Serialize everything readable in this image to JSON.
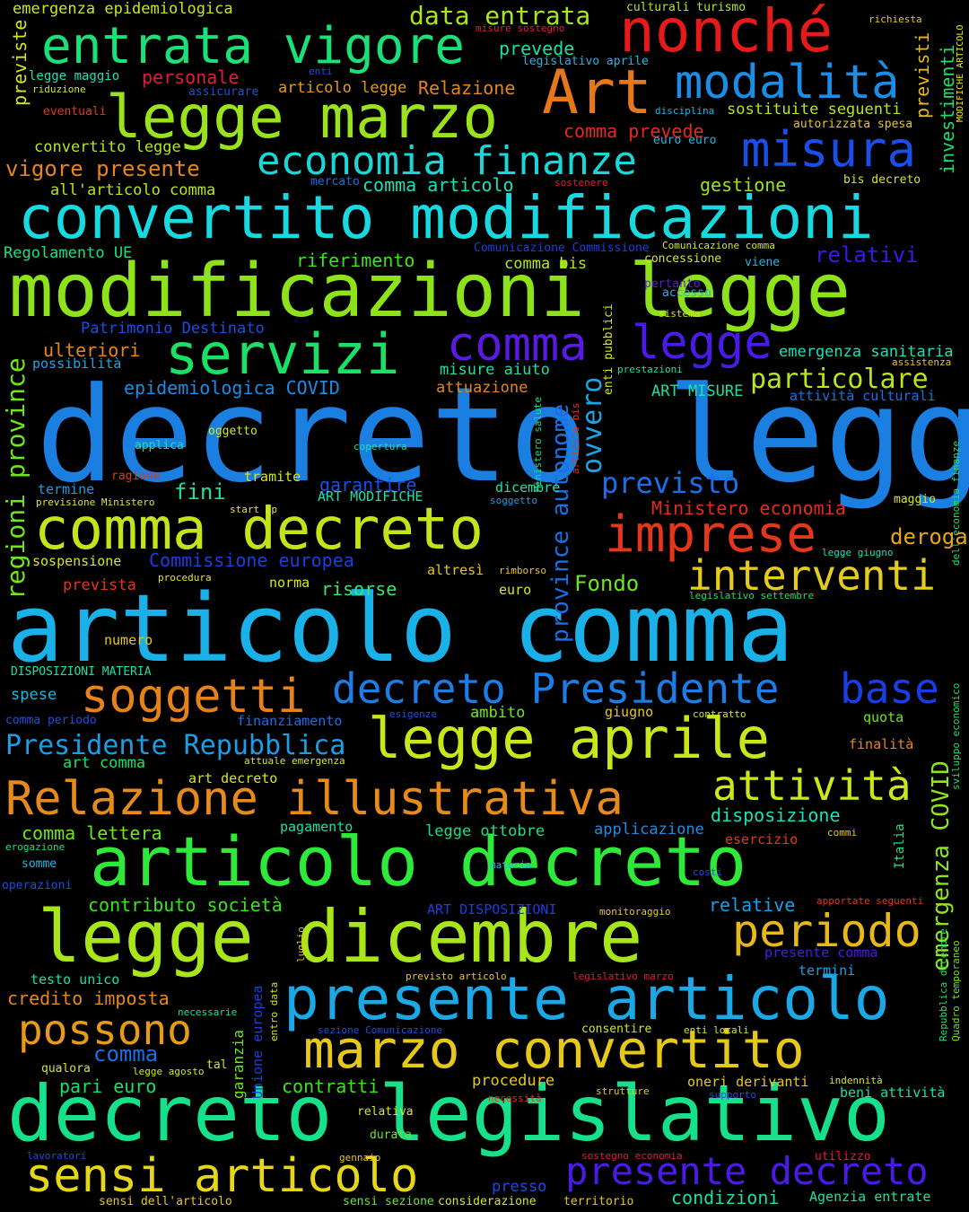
{
  "words": {
    "w01": {
      "text": "decreto legge",
      "color": "#1a7fe0"
    },
    "w02": {
      "text": "articolo comma",
      "color": "#1ab0e8"
    },
    "w03": {
      "text": "modificazioni legge",
      "color": "#8ee21a"
    },
    "w04": {
      "text": "convertito modificazioni",
      "color": "#18d9e0"
    },
    "w05": {
      "text": "decreto legislativo",
      "color": "#16e08a"
    },
    "w06": {
      "text": "articolo decreto",
      "color": "#2ee83a"
    },
    "w07": {
      "text": "legge dicembre",
      "color": "#a8e61a"
    },
    "w08": {
      "text": "legge marzo",
      "color": "#9ae21c"
    },
    "w09": {
      "text": "presente articolo",
      "color": "#1aa8e6"
    },
    "w10": {
      "text": "comma decreto",
      "color": "#c4e41a"
    },
    "w11": {
      "text": "nonché",
      "color": "#e61a1a"
    },
    "w12": {
      "text": "entrata vigore",
      "color": "#1ae07a"
    },
    "w13": {
      "text": "marzo convertito",
      "color": "#e6c81a"
    },
    "w14": {
      "text": "legge aprile",
      "color": "#c8e61a"
    },
    "w15": {
      "text": "Relazione illustrativa",
      "color": "#e68a1a"
    },
    "w16": {
      "text": "Art",
      "color": "#e6781a"
    },
    "w17": {
      "text": "modalità",
      "color": "#1a8ee6"
    },
    "w18": {
      "text": "sensi articolo",
      "color": "#e6d61a"
    },
    "w19": {
      "text": "servizi",
      "color": "#1ae066"
    },
    "w20": {
      "text": "soggetti",
      "color": "#e6821a"
    },
    "w21": {
      "text": "imprese",
      "color": "#e6361a"
    },
    "w22": {
      "text": "misura",
      "color": "#1a4ee6"
    },
    "w23": {
      "text": "economia finanze",
      "color": "#1ad6d6"
    },
    "w24": {
      "text": "comma",
      "color": "#5a1ae6"
    },
    "w25": {
      "text": "legge",
      "color": "#4a1ae6"
    },
    "w26": {
      "text": "decreto Presidente",
      "color": "#1a7ee6"
    },
    "w27": {
      "text": "base",
      "color": "#1a3ee6"
    },
    "w28": {
      "text": "interventi",
      "color": "#e6cc1a"
    },
    "w29": {
      "text": "presente decreto",
      "color": "#4a1ae6"
    },
    "w30": {
      "text": "periodo",
      "color": "#e6b81a"
    },
    "w31": {
      "text": "attività",
      "color": "#cce61a"
    },
    "w32": {
      "text": "possono",
      "color": "#e69a1a"
    },
    "w33": {
      "text": "Presidente Repubblica",
      "color": "#1a9ee6"
    },
    "w34": {
      "text": "previsto",
      "color": "#1a6ee6"
    },
    "w35": {
      "text": "particolare",
      "color": "#b8e61a"
    },
    "w36": {
      "text": "emergenza COVID",
      "color": "#8ee61a"
    },
    "w37": {
      "text": "province autonome",
      "color": "#1a6ee6"
    },
    "w38": {
      "text": "regioni province",
      "color": "#6ee61a"
    },
    "w39": {
      "text": "ovvero",
      "color": "#1aa6e6"
    },
    "w40": {
      "text": "relativi",
      "color": "#3a1ae6"
    },
    "w41": {
      "text": "data entrata",
      "color": "#a8e61a"
    },
    "w42": {
      "text": "prevede",
      "color": "#1ae0a6"
    },
    "w43": {
      "text": "personale",
      "color": "#e61a3a"
    },
    "w44": {
      "text": "Relazione",
      "color": "#e6841a"
    },
    "w45": {
      "text": "articolo legge",
      "color": "#e69a1a"
    },
    "w46": {
      "text": "vigore presente",
      "color": "#e6861a"
    },
    "w47": {
      "text": "comma prevede",
      "color": "#e62a1a"
    },
    "w48": {
      "text": "sostituite seguenti",
      "color": "#b8e61a"
    },
    "w49": {
      "text": "gestione",
      "color": "#9ae61a"
    },
    "w50": {
      "text": "comma articolo",
      "color": "#1ae0b8"
    },
    "w51": {
      "text": "all'articolo comma",
      "color": "#b8e61a"
    },
    "w52": {
      "text": "convertito legge",
      "color": "#b8e61a"
    },
    "w53": {
      "text": "riferimento",
      "color": "#3ae61a"
    },
    "w54": {
      "text": "comma bis",
      "color": "#b8e61a"
    },
    "w55": {
      "text": "Regolamento UE",
      "color": "#1ae080"
    },
    "w56": {
      "text": "epidemiologica COVID",
      "color": "#1a8ee6"
    },
    "w57": {
      "text": "ulteriori",
      "color": "#e6861a"
    },
    "w58": {
      "text": "fini",
      "color": "#1ae0a0"
    },
    "w59": {
      "text": "garantire",
      "color": "#1a4ee6"
    },
    "w60": {
      "text": "Ministero economia",
      "color": "#e62a1a"
    },
    "w61": {
      "text": "deroga",
      "color": "#e6a61a"
    },
    "w62": {
      "text": "Commissione europea",
      "color": "#1a3ee6"
    },
    "w63": {
      "text": "risorse",
      "color": "#3ae66a"
    },
    "w64": {
      "text": "Fondo",
      "color": "#6ee61a"
    },
    "w65": {
      "text": "disposizione",
      "color": "#1ae0b8"
    },
    "w66": {
      "text": "comma lettera",
      "color": "#6ee61a"
    },
    "w67": {
      "text": "contributo società",
      "color": "#3ae61a"
    },
    "w68": {
      "text": "relative",
      "color": "#1a9ee6"
    },
    "w69": {
      "text": "credito imposta",
      "color": "#e6861a"
    },
    "w70": {
      "text": "pari euro",
      "color": "#1ae066"
    },
    "w71": {
      "text": "contratti",
      "color": "#3ae61a"
    },
    "w72": {
      "text": "condizioni",
      "color": "#1ae0a6"
    },
    "w73": {
      "text": "emergenza epidemiologica",
      "color": "#cce61a"
    },
    "w74": {
      "text": "emergenza sanitaria",
      "color": "#1ae0b8"
    },
    "w75": {
      "text": "investimenti",
      "color": "#1ae06a"
    },
    "w76": {
      "text": "previsti",
      "color": "#e6b81a"
    },
    "w77": {
      "text": "previste",
      "color": "#d6e61a"
    },
    "w78": {
      "text": "Patrimonio Destinato",
      "color": "#1a4ee6"
    },
    "w79": {
      "text": "ART MISURE",
      "color": "#1ae0a6"
    },
    "w80": {
      "text": "attuazione",
      "color": "#e6861a"
    },
    "w81": {
      "text": "misure aiuto",
      "color": "#1ae0a6"
    },
    "w82": {
      "text": "possibilità",
      "color": "#1aa6e6"
    },
    "w83": {
      "text": "attività culturali",
      "color": "#1a6ee6"
    },
    "w84": {
      "text": "termine",
      "color": "#1a9ee6"
    },
    "w85": {
      "text": "tramite",
      "color": "#d6e61a"
    },
    "w86": {
      "text": "ART MODIFICHE",
      "color": "#1ae0a6"
    },
    "w87": {
      "text": "dicembre",
      "color": "#1ae0a6"
    },
    "w88": {
      "text": "sospensione",
      "color": "#d6e61a"
    },
    "w89": {
      "text": "altresì",
      "color": "#e6c81a"
    },
    "w90": {
      "text": "prevista",
      "color": "#e6361a"
    },
    "w91": {
      "text": "norma",
      "color": "#d6e61a"
    },
    "w92": {
      "text": "euro",
      "color": "#d6e61a"
    },
    "w93": {
      "text": "numero",
      "color": "#e6c81a"
    },
    "w94": {
      "text": "ambito",
      "color": "#6ee61a"
    },
    "w95": {
      "text": "spese",
      "color": "#1ab8e6"
    },
    "w96": {
      "text": "giugno",
      "color": "#e6c81a"
    },
    "w97": {
      "text": "quota",
      "color": "#6ee61a"
    },
    "w98": {
      "text": "finanziamento",
      "color": "#1a6ee6"
    },
    "w99": {
      "text": "finalità",
      "color": "#e6861a"
    },
    "w100": {
      "text": "art comma",
      "color": "#1ae066"
    },
    "w101": {
      "text": "art decreto",
      "color": "#d6e61a"
    },
    "w102": {
      "text": "pagamento",
      "color": "#1ae0a6"
    },
    "w103": {
      "text": "legge ottobre",
      "color": "#1ae080"
    },
    "w104": {
      "text": "applicazione",
      "color": "#1a8ee6"
    },
    "w105": {
      "text": "esercizio",
      "color": "#e6361a"
    },
    "w106": {
      "text": "Italia",
      "color": "#1ae080"
    },
    "w107": {
      "text": "testo unico",
      "color": "#1ae0a6"
    },
    "w108": {
      "text": "termini",
      "color": "#1a9ee6"
    },
    "w109": {
      "text": "presente comma",
      "color": "#4a1ae6"
    },
    "w110": {
      "text": "ART DISPOSIZIONI",
      "color": "#1a3ee6"
    },
    "w111": {
      "text": "garanzia",
      "color": "#6ee61a"
    },
    "w112": {
      "text": "Unione europea",
      "color": "#1a3ee6"
    },
    "w113": {
      "text": "procedure",
      "color": "#e6c81a"
    },
    "w114": {
      "text": "oneri derivanti",
      "color": "#e6c81a"
    },
    "w115": {
      "text": "beni attività",
      "color": "#1ae0a6"
    },
    "w116": {
      "text": "presso",
      "color": "#1a4ee6"
    },
    "w117": {
      "text": "Agenzia entrate",
      "color": "#1ae0a6"
    },
    "w118": {
      "text": "modificazioni",
      "color": "#1a1ae6"
    },
    "w119": {
      "text": "Quadro temporaneo",
      "color": "#6ee61a"
    },
    "w120": {
      "text": "sviluppo economico",
      "color": "#1ae066"
    },
    "w121": {
      "text": "dell'economia finanze",
      "color": "#1ae066"
    },
    "w122": {
      "text": "Repubblica dicembre",
      "color": "#1ae066"
    },
    "t01": {
      "text": "richiesta",
      "color": "#e6c81a"
    },
    "t02": {
      "text": "misure sostegno",
      "color": "#e61a3a"
    },
    "t03": {
      "text": "culturali turismo",
      "color": "#b8e61a"
    },
    "t04": {
      "text": "legislativo aprile",
      "color": "#1ab8e6"
    },
    "t05": {
      "text": "MODIFICHE ARTICOLO",
      "color": "#e6e61a"
    },
    "t06": {
      "text": "legge maggio",
      "color": "#1ae0b8"
    },
    "t07": {
      "text": "riduzione",
      "color": "#d6e61a"
    },
    "t08": {
      "text": "enti",
      "color": "#1a4ee6"
    },
    "t09": {
      "text": "assicurare",
      "color": "#1a4ee6"
    },
    "t10": {
      "text": "eventuali",
      "color": "#e6361a"
    },
    "t11": {
      "text": "disciplina",
      "color": "#1ab8e6"
    },
    "t12": {
      "text": "autorizzata spesa",
      "color": "#e6c81a"
    },
    "t13": {
      "text": "euro euro",
      "color": "#1ab8e6"
    },
    "t14": {
      "text": "mercato",
      "color": "#1a6ee6"
    },
    "t15": {
      "text": "sostenere",
      "color": "#e61a3a"
    },
    "t16": {
      "text": "bis decreto",
      "color": "#d6e61a"
    },
    "t17": {
      "text": "Comunicazione Commissione",
      "color": "#1a3ee6"
    },
    "t18": {
      "text": "Comunicazione comma",
      "color": "#d6e61a"
    },
    "t19": {
      "text": "concessione",
      "color": "#d6e61a"
    },
    "t20": {
      "text": "viene",
      "color": "#1ab8e6"
    },
    "t21": {
      "text": "pertanto",
      "color": "#5a1ae6"
    },
    "t22": {
      "text": "accesso",
      "color": "#1ab8e6"
    },
    "t23": {
      "text": "sistema",
      "color": "#d6e61a"
    },
    "t24": {
      "text": "enti pubblici",
      "color": "#d6e61a"
    },
    "t25": {
      "text": "prestazioni",
      "color": "#1ae0a6"
    },
    "t26": {
      "text": "assistenza",
      "color": "#e6c81a"
    },
    "t27": {
      "text": "applica",
      "color": "#1ae0a6"
    },
    "t28": {
      "text": "oggetto",
      "color": "#d6e61a"
    },
    "t29": {
      "text": "copertura",
      "color": "#1ae0a6"
    },
    "t30": {
      "text": "Ministero salute",
      "color": "#1ae080"
    },
    "t31": {
      "text": "articolo bis",
      "color": "#e6361a"
    },
    "t32": {
      "text": "ragione",
      "color": "#e6361a"
    },
    "t33": {
      "text": "previsione Ministero",
      "color": "#e6e61a"
    },
    "t34": {
      "text": "start up",
      "color": "#e6e61a"
    },
    "t35": {
      "text": "soggetto",
      "color": "#1a9ee6"
    },
    "t36": {
      "text": "maggio",
      "color": "#d6e61a"
    },
    "t37": {
      "text": "legge giugno",
      "color": "#1ae0b8"
    },
    "t38": {
      "text": "rimborso",
      "color": "#e6c81a"
    },
    "t39": {
      "text": "procedura",
      "color": "#e6e61a"
    },
    "t40": {
      "text": "legislativo settembre",
      "color": "#1ae066"
    },
    "t41": {
      "text": "DISPOSIZIONI MATERIA",
      "color": "#1ae0a6"
    },
    "t42": {
      "text": "comma periodo",
      "color": "#1a4ee6"
    },
    "t43": {
      "text": "esigenze",
      "color": "#1a4ee6"
    },
    "t44": {
      "text": "contratto",
      "color": "#d6e61a"
    },
    "t45": {
      "text": "attuale emergenza",
      "color": "#d6e61a"
    },
    "t46": {
      "text": "erogazione",
      "color": "#1ae080"
    },
    "t47": {
      "text": "commi",
      "color": "#e6c81a"
    },
    "t48": {
      "text": "somme",
      "color": "#1ab8e6"
    },
    "t49": {
      "text": "materia",
      "color": "#1ab8e6"
    },
    "t50": {
      "text": "costi",
      "color": "#1a4ee6"
    },
    "t51": {
      "text": "operazioni",
      "color": "#1a4ee6"
    },
    "t52": {
      "text": "monitoraggio",
      "color": "#e6c81a"
    },
    "t53": {
      "text": "apportate seguenti",
      "color": "#e6361a"
    },
    "t54": {
      "text": "luglio",
      "color": "#e6c81a"
    },
    "t55": {
      "text": "entro data",
      "color": "#d6e61a"
    },
    "t56": {
      "text": "previsto articolo",
      "color": "#e6c81a"
    },
    "t57": {
      "text": "legislativo marzo",
      "color": "#e61a3a"
    },
    "t58": {
      "text": "necessarie",
      "color": "#1ae0a6"
    },
    "t59": {
      "text": "sezione Comunicazione",
      "color": "#1a4ee6"
    },
    "t60": {
      "text": "consentire",
      "color": "#d6e61a"
    },
    "t61": {
      "text": "enti locali",
      "color": "#d6e61a"
    },
    "t62": {
      "text": "qualora",
      "color": "#d6e61a"
    },
    "t63": {
      "text": "legge agosto",
      "color": "#d6e61a"
    },
    "t64": {
      "text": "tal",
      "color": "#d6e61a"
    },
    "t65": {
      "text": "necessità",
      "color": "#e6361a"
    },
    "t66": {
      "text": "strutture",
      "color": "#e6c81a"
    },
    "t67": {
      "text": "supporto",
      "color": "#1a4ee6"
    },
    "t68": {
      "text": "indennità",
      "color": "#d6e61a"
    },
    "t69": {
      "text": "relativa",
      "color": "#d6e61a"
    },
    "t70": {
      "text": "durata",
      "color": "#6ee61a"
    },
    "t71": {
      "text": "lavoratori",
      "color": "#1a4ee6"
    },
    "t72": {
      "text": "gennaio",
      "color": "#e6c81a"
    },
    "t73": {
      "text": "sostegno economia",
      "color": "#e61a3a"
    },
    "t74": {
      "text": "utilizzo",
      "color": "#e61a3a"
    },
    "t75": {
      "text": "sensi dell'articolo",
      "color": "#e6c81a"
    },
    "t76": {
      "text": "sensi sezione",
      "color": "#6ee61a"
    },
    "t77": {
      "text": "considerazione",
      "color": "#d6e61a"
    },
    "t78": {
      "text": "territorio",
      "color": "#e6c81a"
    },
    "t79": {
      "text": "comma",
      "color": "#1a6ee6"
    }
  }
}
